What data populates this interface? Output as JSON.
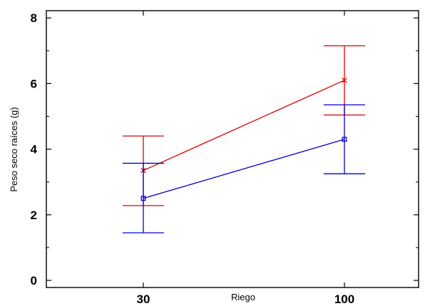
{
  "chart_data": {
    "type": "line",
    "xlabel": "Riego",
    "ylabel": "Peso seco raíces (g)",
    "categories": [
      "30",
      "100"
    ],
    "ylim": [
      -0.3,
      8.2
    ],
    "yticks": [
      0,
      2,
      4,
      6,
      8
    ],
    "grid": false,
    "series": [
      {
        "color": "#dd0000",
        "marker": "x",
        "values": [
          3.35,
          6.1
        ],
        "error_low": [
          2.28,
          5.04
        ],
        "error_high": [
          4.4,
          7.15
        ]
      },
      {
        "color": "#0000cc",
        "marker": "square",
        "values": [
          2.5,
          4.3
        ],
        "error_low": [
          1.45,
          3.25
        ],
        "error_high": [
          3.57,
          5.35
        ]
      }
    ]
  }
}
